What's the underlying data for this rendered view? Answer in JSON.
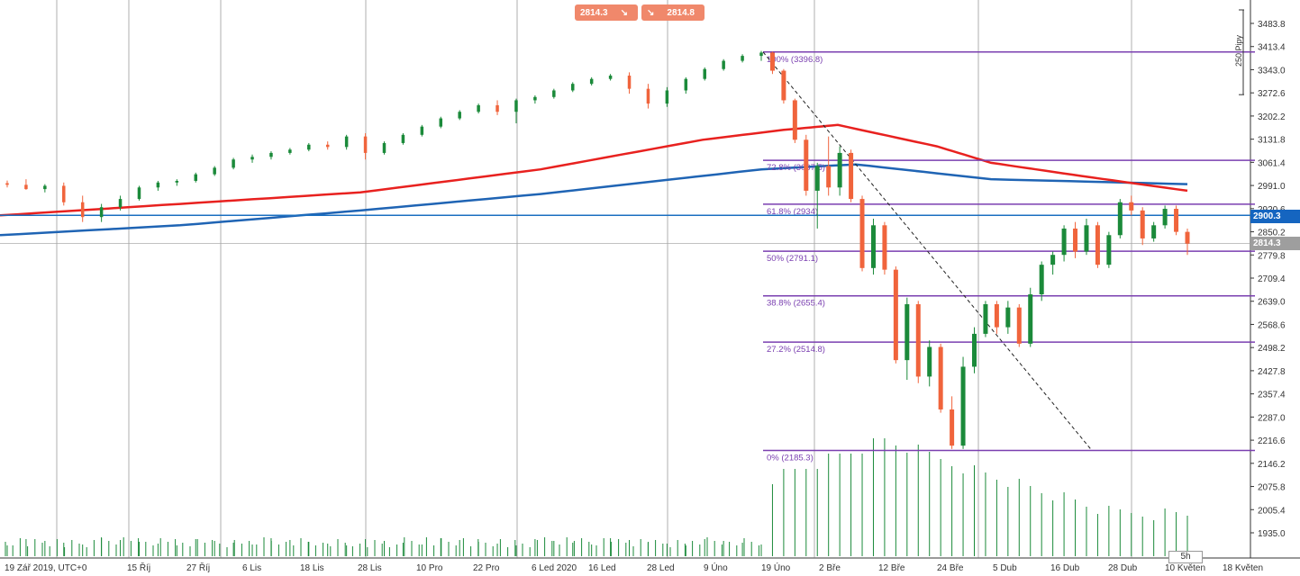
{
  "trade_panel": {
    "sell_price": "2814.3",
    "sell_arrow": "↘",
    "buy_arrow": "↘",
    "buy_price": "2814.8"
  },
  "price_axis": {
    "labels": [
      "3483.8",
      "3413.4",
      "3343.0",
      "3272.6",
      "3202.2",
      "3131.8",
      "3061.4",
      "2991.0",
      "2920.6",
      "2850.2",
      "2779.8",
      "2709.4",
      "2639.0",
      "2568.6",
      "2498.2",
      "2427.8",
      "2357.4",
      "2287.0",
      "2216.6",
      "2146.2",
      "2075.8",
      "2005.4",
      "1935.0"
    ],
    "current_price": "2814.3",
    "hline_price": "2900.3"
  },
  "time_axis": {
    "labels": [
      "19 Zář 2019, UTC+0",
      "15 Říj",
      "27 Říj",
      "6 Lis",
      "18 Lis",
      "28 Lis",
      "10 Pro",
      "22 Pro",
      "6 Led 2020",
      "16 Led",
      "28 Led",
      "9 Úno",
      "19 Úno",
      "2 Bře",
      "12 Bře",
      "24 Bře",
      "5 Dub",
      "16 Dub",
      "28 Dub",
      "10 Květen",
      "18 Květen"
    ]
  },
  "ruler": {
    "label": "250 Pipy"
  },
  "timeframe": {
    "label": "5h"
  },
  "fibonacci": {
    "levels": [
      {
        "label": "100% (3396.8)",
        "price": 3396.8
      },
      {
        "label": "72.8% (3067.5)",
        "price": 3067.5
      },
      {
        "label": "61.8% (2934)",
        "price": 2934
      },
      {
        "label": "50% (2791.1)",
        "price": 2791.1
      },
      {
        "label": "38.8% (2655.4)",
        "price": 2655.4
      },
      {
        "label": "27.2% (2514.8)",
        "price": 2514.8
      },
      {
        "label": "0% (2185.3)",
        "price": 2185.3
      }
    ]
  },
  "colors": {
    "bull": "#1b8a3a",
    "bear": "#f0643c",
    "ma_fast": "#e8211f",
    "ma_slow": "#1f64b4",
    "fib": "#7a3fb0",
    "hline": "#1a6fc0",
    "hline_tag": "#1565c0",
    "price_tag": "#9e9e9e",
    "grid": "#7a7a7a",
    "volume": "#1b8a3a"
  },
  "chart_data": {
    "type": "candlestick",
    "instrument_price_now": 2814.3,
    "ylim": [
      1935.0,
      3483.8
    ],
    "candles": [
      {
        "date": "2019-09-19",
        "c": [
          2998,
          3006,
          2985,
          2993
        ]
      },
      {
        "date": "2019-09-23",
        "c": [
          2993,
          3010,
          2978,
          2980
        ]
      },
      {
        "date": "2019-09-27",
        "c": [
          2980,
          2995,
          2970,
          2990
        ]
      },
      {
        "date": "2019-10-01",
        "c": [
          2990,
          3000,
          2930,
          2940
        ]
      },
      {
        "date": "2019-10-04",
        "c": [
          2940,
          2960,
          2880,
          2895
        ]
      },
      {
        "date": "2019-10-08",
        "c": [
          2895,
          2935,
          2880,
          2925
        ]
      },
      {
        "date": "2019-10-11",
        "c": [
          2925,
          2960,
          2915,
          2950
        ]
      },
      {
        "date": "2019-10-15",
        "c": [
          2950,
          2990,
          2945,
          2985
        ]
      },
      {
        "date": "2019-10-19",
        "c": [
          2985,
          3005,
          2975,
          3000
        ]
      },
      {
        "date": "2019-10-23",
        "c": [
          3000,
          3010,
          2990,
          3005
        ]
      },
      {
        "date": "2019-10-27",
        "c": [
          3005,
          3030,
          3000,
          3025
        ]
      },
      {
        "date": "2019-10-31",
        "c": [
          3025,
          3050,
          3020,
          3045
        ]
      },
      {
        "date": "2019-11-03",
        "c": [
          3045,
          3075,
          3040,
          3070
        ]
      },
      {
        "date": "2019-11-06",
        "c": [
          3070,
          3085,
          3060,
          3078
        ]
      },
      {
        "date": "2019-11-10",
        "c": [
          3078,
          3095,
          3070,
          3090
        ]
      },
      {
        "date": "2019-11-14",
        "c": [
          3090,
          3105,
          3085,
          3100
        ]
      },
      {
        "date": "2019-11-18",
        "c": [
          3100,
          3120,
          3095,
          3115
        ]
      },
      {
        "date": "2019-11-22",
        "c": [
          3115,
          3125,
          3100,
          3108
        ]
      },
      {
        "date": "2019-11-26",
        "c": [
          3108,
          3145,
          3100,
          3140
        ]
      },
      {
        "date": "2019-11-30",
        "c": [
          3140,
          3150,
          3070,
          3090
        ]
      },
      {
        "date": "2019-12-03",
        "c": [
          3090,
          3125,
          3085,
          3120
        ]
      },
      {
        "date": "2019-12-07",
        "c": [
          3120,
          3150,
          3115,
          3145
        ]
      },
      {
        "date": "2019-12-10",
        "c": [
          3145,
          3175,
          3140,
          3170
        ]
      },
      {
        "date": "2019-12-14",
        "c": [
          3170,
          3200,
          3165,
          3195
        ]
      },
      {
        "date": "2019-12-18",
        "c": [
          3195,
          3220,
          3190,
          3215
        ]
      },
      {
        "date": "2019-12-22",
        "c": [
          3215,
          3240,
          3210,
          3235
        ]
      },
      {
        "date": "2019-12-26",
        "c": [
          3235,
          3250,
          3205,
          3215
        ]
      },
      {
        "date": "2019-12-30",
        "c": [
          3215,
          3255,
          3180,
          3250
        ]
      },
      {
        "date": "2020-01-03",
        "c": [
          3250,
          3265,
          3240,
          3260
        ]
      },
      {
        "date": "2020-01-06",
        "c": [
          3260,
          3285,
          3255,
          3280
        ]
      },
      {
        "date": "2020-01-10",
        "c": [
          3280,
          3305,
          3275,
          3300
        ]
      },
      {
        "date": "2020-01-14",
        "c": [
          3300,
          3320,
          3295,
          3315
        ]
      },
      {
        "date": "2020-01-18",
        "c": [
          3315,
          3330,
          3310,
          3325
        ]
      },
      {
        "date": "2020-01-22",
        "c": [
          3325,
          3335,
          3270,
          3285
        ]
      },
      {
        "date": "2020-01-26",
        "c": [
          3285,
          3300,
          3225,
          3240
        ]
      },
      {
        "date": "2020-01-30",
        "c": [
          3240,
          3290,
          3230,
          3280
        ]
      },
      {
        "date": "2020-02-02",
        "c": [
          3280,
          3320,
          3270,
          3315
        ]
      },
      {
        "date": "2020-02-06",
        "c": [
          3315,
          3350,
          3310,
          3345
        ]
      },
      {
        "date": "2020-02-09",
        "c": [
          3345,
          3375,
          3340,
          3370
        ]
      },
      {
        "date": "2020-02-13",
        "c": [
          3370,
          3390,
          3365,
          3385
        ]
      },
      {
        "date": "2020-02-17",
        "c": [
          3385,
          3400,
          3370,
          3395
        ]
      },
      {
        "date": "2020-02-20",
        "c": [
          3395,
          3398,
          3330,
          3340
        ]
      },
      {
        "date": "2020-02-22",
        "c": [
          3340,
          3345,
          3240,
          3250
        ]
      },
      {
        "date": "2020-02-24",
        "c": [
          3250,
          3255,
          3120,
          3130
        ]
      },
      {
        "date": "2020-02-26",
        "c": [
          3130,
          3145,
          2960,
          2975
        ]
      },
      {
        "date": "2020-02-28",
        "c": [
          2975,
          3060,
          2860,
          3050
        ]
      },
      {
        "date": "2020-03-01",
        "c": [
          3050,
          3140,
          2960,
          2985
        ]
      },
      {
        "date": "2020-03-03",
        "c": [
          2985,
          3110,
          2960,
          3090
        ]
      },
      {
        "date": "2020-03-05",
        "c": [
          3090,
          3100,
          2940,
          2950
        ]
      },
      {
        "date": "2020-03-07",
        "c": [
          2950,
          2960,
          2730,
          2740
        ]
      },
      {
        "date": "2020-03-09",
        "c": [
          2740,
          2890,
          2720,
          2870
        ]
      },
      {
        "date": "2020-03-11",
        "c": [
          2870,
          2880,
          2720,
          2735
        ]
      },
      {
        "date": "2020-03-13",
        "c": [
          2735,
          2745,
          2450,
          2460
        ]
      },
      {
        "date": "2020-03-15",
        "c": [
          2460,
          2650,
          2400,
          2630
        ]
      },
      {
        "date": "2020-03-17",
        "c": [
          2630,
          2640,
          2390,
          2410
        ]
      },
      {
        "date": "2020-03-19",
        "c": [
          2410,
          2520,
          2380,
          2500
        ]
      },
      {
        "date": "2020-03-21",
        "c": [
          2500,
          2510,
          2300,
          2310
        ]
      },
      {
        "date": "2020-03-23",
        "c": [
          2310,
          2350,
          2190,
          2200
        ]
      },
      {
        "date": "2020-03-25",
        "c": [
          2200,
          2470,
          2190,
          2440
        ]
      },
      {
        "date": "2020-03-27",
        "c": [
          2440,
          2560,
          2420,
          2540
        ]
      },
      {
        "date": "2020-03-29",
        "c": [
          2540,
          2640,
          2530,
          2630
        ]
      },
      {
        "date": "2020-03-31",
        "c": [
          2630,
          2640,
          2540,
          2560
        ]
      },
      {
        "date": "2020-04-02",
        "c": [
          2560,
          2640,
          2540,
          2620
        ]
      },
      {
        "date": "2020-04-04",
        "c": [
          2620,
          2630,
          2500,
          2510
        ]
      },
      {
        "date": "2020-04-06",
        "c": [
          2510,
          2680,
          2500,
          2660
        ]
      },
      {
        "date": "2020-04-08",
        "c": [
          2660,
          2760,
          2640,
          2750
        ]
      },
      {
        "date": "2020-04-10",
        "c": [
          2750,
          2790,
          2720,
          2780
        ]
      },
      {
        "date": "2020-04-13",
        "c": [
          2780,
          2870,
          2760,
          2860
        ]
      },
      {
        "date": "2020-04-16",
        "c": [
          2860,
          2880,
          2770,
          2790
        ]
      },
      {
        "date": "2020-04-19",
        "c": [
          2790,
          2890,
          2780,
          2870
        ]
      },
      {
        "date": "2020-04-22",
        "c": [
          2870,
          2880,
          2740,
          2750
        ]
      },
      {
        "date": "2020-04-25",
        "c": [
          2750,
          2850,
          2740,
          2840
        ]
      },
      {
        "date": "2020-04-28",
        "c": [
          2840,
          2950,
          2830,
          2940
        ]
      },
      {
        "date": "2020-04-30",
        "c": [
          2940,
          2960,
          2900,
          2915
        ]
      },
      {
        "date": "2020-05-02",
        "c": [
          2915,
          2925,
          2810,
          2830
        ]
      },
      {
        "date": "2020-05-05",
        "c": [
          2830,
          2880,
          2820,
          2870
        ]
      },
      {
        "date": "2020-05-07",
        "c": [
          2870,
          2930,
          2860,
          2920
        ]
      },
      {
        "date": "2020-05-09",
        "c": [
          2920,
          2930,
          2840,
          2850
        ]
      },
      {
        "date": "2020-05-11",
        "c": [
          2850,
          2860,
          2780,
          2814.3
        ]
      }
    ]
  }
}
